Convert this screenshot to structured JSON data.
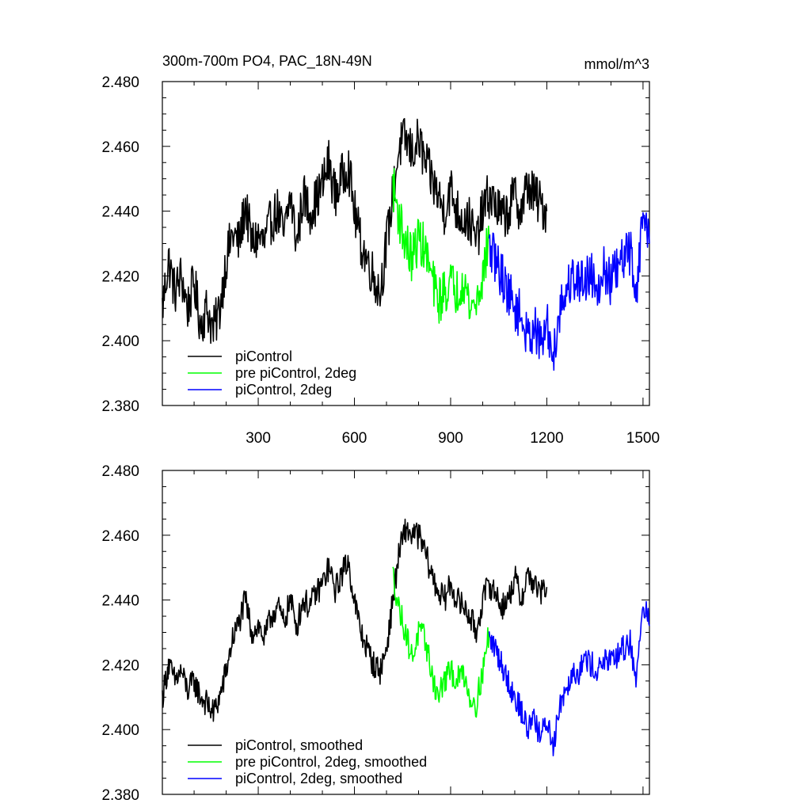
{
  "chart_data": [
    {
      "type": "line",
      "title": "300m-700m PO4, PAC_18N-49N",
      "units": "mmol/m^3",
      "xlim": [
        1,
        1520
      ],
      "ylim": [
        2.38,
        2.48
      ],
      "x_ticks": [
        300,
        600,
        900,
        1200,
        1500
      ],
      "x_tick_labels": [
        "300",
        "600",
        "900",
        "1200",
        "1500"
      ],
      "y_ticks": [
        2.38,
        2.4,
        2.42,
        2.44,
        2.46,
        2.48
      ],
      "y_tick_labels": [
        "2.380",
        "2.400",
        "2.420",
        "2.440",
        "2.460",
        "2.480"
      ],
      "legend_position": "bottom-left",
      "series": [
        {
          "name": "piControl",
          "color": "#000000",
          "x": [
            1,
            20,
            40,
            60,
            80,
            100,
            120,
            140,
            160,
            180,
            200,
            220,
            240,
            260,
            280,
            300,
            320,
            340,
            360,
            380,
            400,
            420,
            440,
            460,
            480,
            500,
            520,
            540,
            560,
            580,
            600,
            620,
            640,
            660,
            680,
            700,
            720,
            740,
            760,
            780,
            800,
            820,
            840,
            860,
            880,
            900,
            920,
            940,
            960,
            980,
            1000,
            1020,
            1040,
            1060,
            1080,
            1100,
            1120,
            1140,
            1160,
            1180,
            1200
          ],
          "y": [
            2.41,
            2.425,
            2.415,
            2.42,
            2.41,
            2.418,
            2.405,
            2.41,
            2.403,
            2.41,
            2.425,
            2.433,
            2.43,
            2.442,
            2.43,
            2.432,
            2.43,
            2.437,
            2.44,
            2.432,
            2.445,
            2.43,
            2.445,
            2.44,
            2.443,
            2.448,
            2.455,
            2.445,
            2.45,
            2.455,
            2.44,
            2.43,
            2.425,
            2.42,
            2.415,
            2.43,
            2.445,
            2.46,
            2.462,
            2.458,
            2.462,
            2.455,
            2.45,
            2.445,
            2.44,
            2.447,
            2.44,
            2.438,
            2.437,
            2.43,
            2.44,
            2.445,
            2.442,
            2.438,
            2.44,
            2.445,
            2.44,
            2.448,
            2.445,
            2.442,
            2.44
          ]
        },
        {
          "name": "pre piControl, 2deg",
          "color": "#00ff00",
          "x": [
            720,
            740,
            760,
            780,
            800,
            820,
            840,
            860,
            880,
            900,
            920,
            940,
            960,
            980,
            1000,
            1020
          ],
          "y": [
            2.448,
            2.438,
            2.43,
            2.425,
            2.432,
            2.428,
            2.42,
            2.412,
            2.415,
            2.418,
            2.415,
            2.42,
            2.41,
            2.412,
            2.42,
            2.432
          ]
        },
        {
          "name": "piControl, 2deg",
          "color": "#0000ff",
          "x": [
            1020,
            1040,
            1060,
            1080,
            1100,
            1120,
            1140,
            1160,
            1180,
            1200,
            1220,
            1240,
            1260,
            1280,
            1300,
            1320,
            1340,
            1360,
            1380,
            1400,
            1420,
            1440,
            1460,
            1480,
            1500,
            1520
          ],
          "y": [
            2.428,
            2.425,
            2.42,
            2.415,
            2.41,
            2.408,
            2.4,
            2.405,
            2.398,
            2.405,
            2.395,
            2.41,
            2.415,
            2.42,
            2.418,
            2.42,
            2.42,
            2.418,
            2.422,
            2.418,
            2.422,
            2.425,
            2.428,
            2.415,
            2.44,
            2.43
          ]
        }
      ]
    },
    {
      "type": "line",
      "xlim": [
        1,
        1520
      ],
      "ylim": [
        2.38,
        2.48
      ],
      "x_ticks": [
        300,
        600,
        900,
        1200,
        1500
      ],
      "y_ticks": [
        2.38,
        2.4,
        2.42,
        2.44,
        2.46,
        2.48
      ],
      "y_tick_labels": [
        "2.380",
        "2.400",
        "2.420",
        "2.440",
        "2.460",
        "2.480"
      ],
      "legend_position": "bottom-left",
      "series": [
        {
          "name": "piControl, smoothed",
          "color": "#000000",
          "x": [
            1,
            20,
            40,
            60,
            80,
            100,
            120,
            140,
            160,
            180,
            200,
            220,
            240,
            260,
            280,
            300,
            320,
            340,
            360,
            380,
            400,
            420,
            440,
            460,
            480,
            500,
            520,
            540,
            560,
            580,
            600,
            620,
            640,
            660,
            680,
            700,
            720,
            740,
            760,
            780,
            800,
            820,
            840,
            860,
            880,
            900,
            920,
            940,
            960,
            980,
            1000,
            1020,
            1040,
            1060,
            1080,
            1100,
            1120,
            1140,
            1160,
            1180,
            1200
          ],
          "y": [
            2.41,
            2.42,
            2.415,
            2.418,
            2.412,
            2.415,
            2.41,
            2.408,
            2.405,
            2.41,
            2.418,
            2.428,
            2.433,
            2.44,
            2.43,
            2.432,
            2.428,
            2.435,
            2.438,
            2.433,
            2.44,
            2.432,
            2.44,
            2.438,
            2.442,
            2.445,
            2.45,
            2.443,
            2.448,
            2.452,
            2.44,
            2.43,
            2.425,
            2.42,
            2.418,
            2.425,
            2.44,
            2.455,
            2.462,
            2.46,
            2.46,
            2.455,
            2.448,
            2.443,
            2.44,
            2.445,
            2.44,
            2.438,
            2.435,
            2.43,
            2.44,
            2.445,
            2.442,
            2.438,
            2.44,
            2.447,
            2.44,
            2.448,
            2.445,
            2.442,
            2.444
          ]
        },
        {
          "name": "pre piControl, 2deg, smoothed",
          "color": "#00ff00",
          "x": [
            720,
            740,
            760,
            780,
            800,
            820,
            840,
            860,
            880,
            900,
            920,
            940,
            960,
            980,
            1000,
            1020
          ],
          "y": [
            2.448,
            2.437,
            2.43,
            2.422,
            2.43,
            2.428,
            2.418,
            2.41,
            2.415,
            2.418,
            2.415,
            2.418,
            2.41,
            2.408,
            2.418,
            2.43
          ]
        },
        {
          "name": "piControl, 2deg, smoothed",
          "color": "#0000ff",
          "x": [
            1020,
            1040,
            1060,
            1080,
            1100,
            1120,
            1140,
            1160,
            1180,
            1200,
            1220,
            1240,
            1260,
            1280,
            1300,
            1320,
            1340,
            1360,
            1380,
            1400,
            1420,
            1440,
            1460,
            1480,
            1500,
            1520
          ],
          "y": [
            2.428,
            2.425,
            2.42,
            2.415,
            2.41,
            2.406,
            2.4,
            2.405,
            2.397,
            2.403,
            2.395,
            2.408,
            2.413,
            2.418,
            2.418,
            2.422,
            2.42,
            2.418,
            2.422,
            2.42,
            2.423,
            2.425,
            2.427,
            2.415,
            2.44,
            2.432
          ]
        }
      ]
    }
  ]
}
